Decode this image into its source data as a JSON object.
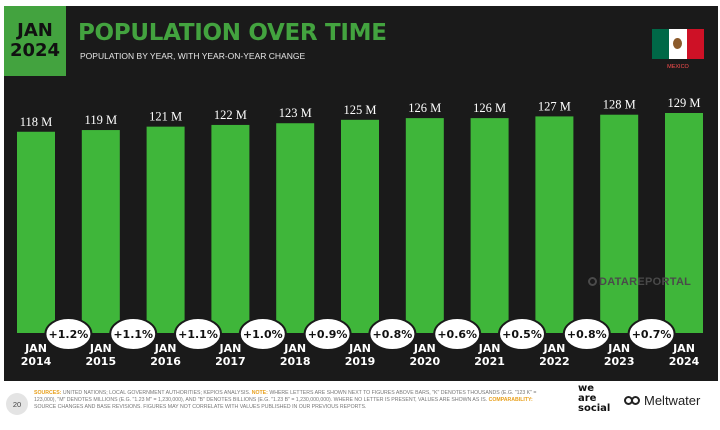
{
  "badge": {
    "month": "JAN",
    "year": "2024"
  },
  "title": "POPULATION OVER TIME",
  "subtitle": "POPULATION BY YEAR, WITH YEAR-ON-YEAR CHANGE",
  "country": "MEXICO",
  "watermark": "DATAREPORTAL",
  "page_number": "20",
  "footer": {
    "sources_label": "SOURCES:",
    "sources_text": " UNITED NATIONS; LOCAL GOVERNMENT AUTHORITIES; KEPIOS ANALYSIS. ",
    "note_label": "NOTE:",
    "note_text": " WHERE LETTERS ARE SHOWN NEXT TO FIGURES ABOVE BARS, \"K\" DENOTES THOUSANDS (E.G. \"123 K\" = 123,000), \"M\" DENOTES MILLIONS (E.G. \"1.23 M\" = 1,230,000), AND \"B\" DENOTES BILLIONS (E.G. \"1.23 B\" = 1,230,000,000). WHERE NO LETTER IS PRESENT, VALUES ARE SHOWN AS IS. ",
    "comparability_label": "COMPARABILITY:",
    "comparability_text": " SOURCE CHANGES AND BASE REVISIONS. FIGURES MAY NOT CORRELATE WITH VALUES PUBLISHED IN OUR PREVIOUS REPORTS."
  },
  "brand": {
    "line1": "we",
    "line2": "are",
    "line3": "social",
    "partner": "Meltwater"
  },
  "colors": {
    "accent": "#43a33f",
    "bar": "#3fb63a",
    "panel": "#1a1a1a",
    "note": "#e8a01c"
  },
  "chart_data": {
    "type": "bar",
    "categories": [
      "JAN 2014",
      "JAN 2015",
      "JAN 2016",
      "JAN 2017",
      "JAN 2018",
      "JAN 2019",
      "JAN 2020",
      "JAN 2021",
      "JAN 2022",
      "JAN 2023",
      "JAN 2024"
    ],
    "category_lines": [
      [
        "JAN",
        "2014"
      ],
      [
        "JAN",
        "2015"
      ],
      [
        "JAN",
        "2016"
      ],
      [
        "JAN",
        "2017"
      ],
      [
        "JAN",
        "2018"
      ],
      [
        "JAN",
        "2019"
      ],
      [
        "JAN",
        "2020"
      ],
      [
        "JAN",
        "2021"
      ],
      [
        "JAN",
        "2022"
      ],
      [
        "JAN",
        "2023"
      ],
      [
        "JAN",
        "2024"
      ]
    ],
    "values": [
      118,
      119,
      121,
      122,
      123,
      125,
      126,
      126,
      127,
      128,
      129
    ],
    "unit": "M",
    "value_labels": [
      "118 M",
      "119 M",
      "121 M",
      "122 M",
      "123 M",
      "125 M",
      "126 M",
      "126 M",
      "127 M",
      "128 M",
      "129 M"
    ],
    "changes": [
      "+1.2%",
      "+1.1%",
      "+1.1%",
      "+1.0%",
      "+0.9%",
      "+0.8%",
      "+0.6%",
      "+0.5%",
      "+0.8%",
      "+0.7%"
    ],
    "ylim": [
      0,
      129
    ],
    "grid": false,
    "legend": "none"
  }
}
